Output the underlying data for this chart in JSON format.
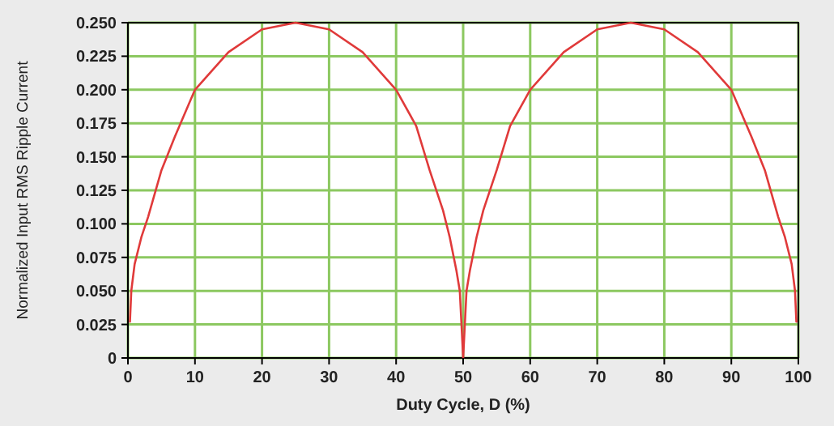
{
  "chart_data": {
    "type": "line",
    "xlabel": "Duty Cycle, D (%)",
    "ylabel": "Normalized Input RMS Ripple Current",
    "x": [
      0.3,
      0.5,
      1,
      2,
      3,
      5,
      7,
      10,
      15,
      20,
      25,
      30,
      35,
      40,
      43,
      45,
      47,
      48,
      49,
      49.5,
      50,
      50.5,
      51,
      52,
      53,
      55,
      57,
      60,
      65,
      70,
      75,
      80,
      85,
      90,
      93,
      95,
      97,
      98,
      99,
      99.5,
      99.7
    ],
    "series": [
      {
        "color": "#e03a3a",
        "values": [
          0.027,
          0.05,
          0.07,
          0.09,
          0.105,
          0.14,
          0.165,
          0.2,
          0.228,
          0.245,
          0.25,
          0.245,
          0.228,
          0.2,
          0.173,
          0.14,
          0.11,
          0.09,
          0.065,
          0.05,
          0,
          0.05,
          0.065,
          0.09,
          0.11,
          0.14,
          0.173,
          0.2,
          0.228,
          0.245,
          0.25,
          0.245,
          0.228,
          0.2,
          0.165,
          0.14,
          0.105,
          0.09,
          0.07,
          0.05,
          0.027
        ]
      }
    ],
    "xlim": [
      0,
      100
    ],
    "xticks": [
      0,
      10,
      20,
      30,
      40,
      50,
      60,
      70,
      80,
      90,
      100
    ],
    "ylim": [
      0,
      0.25
    ],
    "yticks": [
      {
        "value": 0,
        "label": "0"
      },
      {
        "value": 0.025,
        "label": "0.025"
      },
      {
        "value": 0.05,
        "label": "0.050"
      },
      {
        "value": 0.075,
        "label": "0.075"
      },
      {
        "value": 0.1,
        "label": "0.100"
      },
      {
        "value": 0.125,
        "label": "0.125"
      },
      {
        "value": 0.15,
        "label": "0.150"
      },
      {
        "value": 0.175,
        "label": "0.175"
      },
      {
        "value": 0.2,
        "label": "0.200"
      },
      {
        "value": 0.225,
        "label": "0.225"
      },
      {
        "value": 0.25,
        "label": "0.250"
      }
    ],
    "grid": true,
    "marker": "none",
    "line_style": "solid"
  }
}
